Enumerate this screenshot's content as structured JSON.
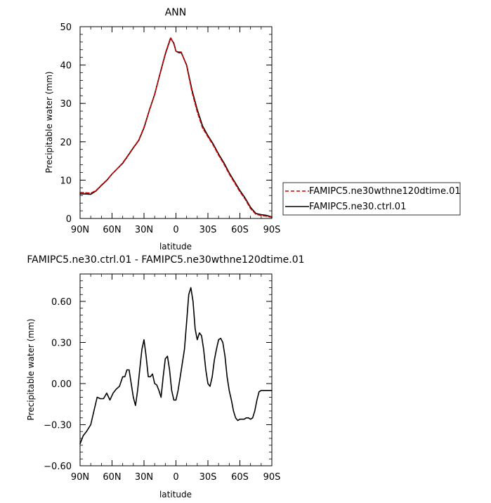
{
  "chart_data": [
    {
      "type": "line",
      "title": "ANN",
      "xlabel": "latitude",
      "ylabel": "Precipitable water (mm)",
      "xlim": [
        90,
        -90
      ],
      "ylim": [
        0,
        50
      ],
      "x_ticks": [
        90,
        60,
        30,
        0,
        -30,
        -60,
        -90
      ],
      "x_tick_labels": [
        "90N",
        "60N",
        "30N",
        "0",
        "30S",
        "60S",
        "90S"
      ],
      "y_ticks": [
        0,
        10,
        20,
        30,
        40,
        50
      ],
      "y_tick_labels": [
        "0",
        "10",
        "20",
        "30",
        "40",
        "50"
      ],
      "legend_position": "right",
      "series": [
        {
          "name": "FAMIPC5.ne30wthne120dtime.01",
          "color": "#cc0000",
          "dash": true,
          "x": [
            90,
            85,
            80,
            75,
            70,
            65,
            60,
            55,
            50,
            45,
            40,
            35,
            30,
            25,
            20,
            15,
            10,
            5,
            2,
            0,
            -3,
            -5,
            -10,
            -15,
            -20,
            -25,
            -30,
            -35,
            -40,
            -45,
            -50,
            -55,
            -60,
            -65,
            -70,
            -75,
            -80,
            -85,
            -90
          ],
          "y": [
            6.8,
            6.7,
            6.6,
            7.3,
            8.7,
            10.0,
            11.6,
            13.0,
            14.5,
            16.5,
            18.5,
            20.4,
            23.8,
            28.2,
            32.3,
            37.8,
            43.0,
            47.2,
            45.5,
            43.6,
            43.4,
            43.4,
            39.8,
            33.0,
            27.8,
            23.6,
            21.3,
            19.1,
            16.5,
            14.2,
            11.6,
            9.3,
            7.0,
            5.0,
            2.6,
            1.1,
            0.8,
            0.6,
            0.3
          ]
        },
        {
          "name": "FAMIPC5.ne30.ctrl.01",
          "color": "#000000",
          "dash": false,
          "x": [
            90,
            85,
            80,
            75,
            70,
            65,
            60,
            55,
            50,
            45,
            40,
            35,
            30,
            25,
            20,
            15,
            10,
            5,
            2,
            0,
            -3,
            -5,
            -10,
            -15,
            -20,
            -25,
            -30,
            -35,
            -40,
            -45,
            -50,
            -55,
            -60,
            -65,
            -70,
            -75,
            -80,
            -85,
            -90
          ],
          "y": [
            6.4,
            6.4,
            6.3,
            7.2,
            8.6,
            9.9,
            11.6,
            13.0,
            14.4,
            16.4,
            18.4,
            20.3,
            23.6,
            28.2,
            32.4,
            37.7,
            42.8,
            47.0,
            45.7,
            43.6,
            43.2,
            43.2,
            40.0,
            33.5,
            28.4,
            24.1,
            21.6,
            19.4,
            16.8,
            14.5,
            11.9,
            9.6,
            7.3,
            5.3,
            2.9,
            1.3,
            1.0,
            0.8,
            0.4
          ]
        }
      ]
    },
    {
      "type": "line",
      "title": "FAMIPC5.ne30.ctrl.01  -  FAMIPC5.ne30wthne120dtime.01",
      "xlabel": "latitude",
      "ylabel": "Precipitable water (mm)",
      "xlim": [
        90,
        -90
      ],
      "ylim": [
        -0.6,
        0.8
      ],
      "x_ticks": [
        90,
        60,
        30,
        0,
        -30,
        -60,
        -90
      ],
      "x_tick_labels": [
        "90N",
        "60N",
        "30N",
        "0",
        "30S",
        "60S",
        "90S"
      ],
      "y_ticks": [
        -0.6,
        -0.3,
        0.0,
        0.3,
        0.6
      ],
      "y_tick_labels": [
        "−0.60",
        "−0.30",
        "0.00",
        "0.30",
        "0.60"
      ],
      "series": [
        {
          "color": "#000000",
          "dash": false,
          "x": [
            90,
            87,
            84,
            80,
            77,
            74,
            71,
            68,
            65,
            62,
            59,
            56,
            53,
            50,
            48,
            46,
            44,
            42,
            40,
            38,
            36,
            34,
            32,
            30,
            28,
            26,
            24,
            22,
            20,
            18,
            16,
            14,
            12,
            10,
            8,
            6,
            4,
            2,
            0,
            -2,
            -4,
            -6,
            -8,
            -10,
            -12,
            -14,
            -16,
            -18,
            -20,
            -22,
            -24,
            -26,
            -28,
            -30,
            -32,
            -34,
            -36,
            -38,
            -40,
            -42,
            -44,
            -46,
            -48,
            -50,
            -52,
            -54,
            -56,
            -58,
            -60,
            -62,
            -64,
            -66,
            -68,
            -70,
            -72,
            -74,
            -76,
            -78,
            -80,
            -82,
            -84,
            -86,
            -88,
            -90
          ],
          "y": [
            -0.44,
            -0.38,
            -0.35,
            -0.3,
            -0.2,
            -0.1,
            -0.11,
            -0.11,
            -0.07,
            -0.12,
            -0.07,
            -0.04,
            -0.02,
            0.05,
            0.05,
            0.1,
            0.1,
            0.0,
            -0.1,
            -0.16,
            -0.05,
            0.1,
            0.25,
            0.32,
            0.2,
            0.05,
            0.05,
            0.07,
            0.0,
            -0.01,
            -0.05,
            -0.1,
            0.05,
            0.18,
            0.2,
            0.1,
            -0.05,
            -0.12,
            -0.12,
            -0.05,
            0.05,
            0.15,
            0.25,
            0.45,
            0.65,
            0.7,
            0.6,
            0.4,
            0.32,
            0.37,
            0.35,
            0.25,
            0.1,
            0.0,
            -0.02,
            0.05,
            0.17,
            0.25,
            0.32,
            0.33,
            0.3,
            0.2,
            0.05,
            -0.05,
            -0.12,
            -0.2,
            -0.25,
            -0.27,
            -0.26,
            -0.26,
            -0.26,
            -0.25,
            -0.25,
            -0.26,
            -0.25,
            -0.2,
            -0.12,
            -0.06,
            -0.05,
            -0.05,
            -0.05,
            -0.05,
            -0.05,
            -0.05
          ]
        }
      ]
    }
  ]
}
